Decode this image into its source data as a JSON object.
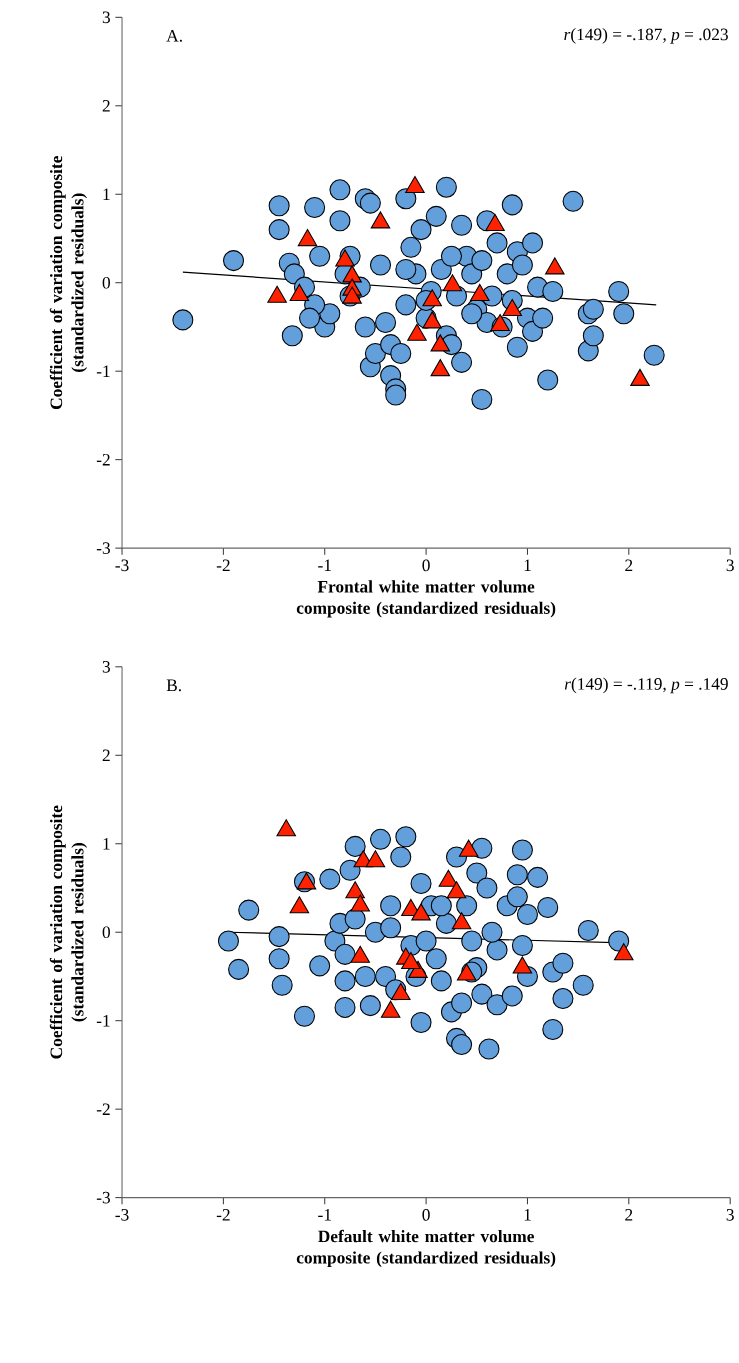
{
  "chart_data": [
    {
      "type": "scatter",
      "xlabel": "Frontal white matter volume composite (standardized residuals)",
      "ylabel": "Coefficient of variation composite (standardized residuals)",
      "annotations": [
        "A.",
        "*r*(149) = -.187, *p* = .023"
      ],
      "xlim": [
        -3,
        3
      ],
      "ylim": [
        -3,
        3
      ],
      "xticks": [
        -3,
        -2,
        -1,
        0,
        1,
        2,
        3
      ],
      "yticks": [
        -3,
        -2,
        -1,
        0,
        1,
        2,
        3
      ],
      "series": [
        {
          "color": "#629fdb",
          "marker": "circle",
          "x": [
            -2.4,
            -1.9,
            -1.45,
            -1.45,
            -1.35,
            -1.3,
            -1.32,
            -1.2,
            -1.1,
            -1.05,
            -1.0,
            -0.95,
            -1.1,
            -1.15,
            -0.85,
            -0.85,
            -0.75,
            -0.8,
            -0.6,
            -0.55,
            -0.6,
            -0.55,
            -0.5,
            -0.45,
            -0.4,
            -0.35,
            -0.35,
            -0.3,
            -0.3,
            -0.25,
            -0.2,
            -0.2,
            -0.15,
            -0.1,
            -0.05,
            0.0,
            0.05,
            0.1,
            0.15,
            0.2,
            0.2,
            0.25,
            0.3,
            0.35,
            0.35,
            0.4,
            0.45,
            0.5,
            0.55,
            0.55,
            0.6,
            0.6,
            0.65,
            0.7,
            0.75,
            0.8,
            0.85,
            0.85,
            0.9,
            0.9,
            0.95,
            1.0,
            1.05,
            1.05,
            1.1,
            1.15,
            1.2,
            1.25,
            1.45,
            1.6,
            1.6,
            1.65,
            1.65,
            1.9,
            1.95,
            2.25,
            -0.75,
            -0.65,
            -0.2,
            0.45,
            0.0,
            0.25
          ],
          "values": [
            -0.42,
            0.25,
            0.87,
            0.6,
            0.22,
            0.1,
            -0.6,
            -0.05,
            0.85,
            0.3,
            -0.5,
            -0.35,
            -0.25,
            -0.4,
            1.05,
            0.7,
            0.3,
            0.1,
            0.95,
            0.9,
            -0.5,
            -0.95,
            -0.8,
            0.2,
            -0.45,
            -0.7,
            -1.05,
            -1.2,
            -1.27,
            -0.8,
            0.95,
            -0.25,
            0.4,
            0.1,
            0.6,
            -0.4,
            -0.1,
            0.75,
            0.15,
            1.08,
            -0.6,
            -0.7,
            -0.15,
            0.65,
            -0.9,
            0.3,
            0.1,
            -0.3,
            -1.32,
            0.25,
            0.7,
            -0.45,
            -0.15,
            0.45,
            -0.5,
            0.1,
            0.88,
            -0.2,
            0.35,
            -0.73,
            0.2,
            -0.4,
            0.45,
            -0.55,
            -0.05,
            -0.4,
            -1.1,
            -0.1,
            0.92,
            -0.35,
            -0.77,
            -0.3,
            -0.6,
            -0.1,
            -0.35,
            -0.82,
            -0.15,
            -0.05,
            0.15,
            -0.35,
            -0.2,
            0.3
          ]
        },
        {
          "color": "#ff2200",
          "marker": "triangle",
          "x": [
            -1.47,
            -1.25,
            -1.17,
            -0.8,
            -0.73,
            -0.73,
            -0.73,
            -0.45,
            -0.11,
            -0.09,
            0.06,
            0.06,
            0.14,
            0.14,
            0.26,
            0.53,
            0.68,
            0.73,
            0.85,
            1.27,
            2.11
          ],
          "values": [
            -0.16,
            -0.14,
            0.48,
            0.25,
            0.07,
            -0.08,
            -0.17,
            0.68,
            1.08,
            -0.59,
            -0.2,
            -0.45,
            -0.71,
            -0.99,
            -0.03,
            -0.14,
            0.65,
            -0.48,
            -0.31,
            0.16,
            -1.1
          ]
        },
        {
          "type": "line",
          "color": "#000000",
          "marker": "none",
          "line_style": "solid",
          "x": [
            -2.4,
            2.27
          ],
          "values": [
            0.12,
            -0.25
          ]
        }
      ]
    },
    {
      "type": "scatter",
      "xlabel": "Default white matter volume composite (standardized residuals)",
      "ylabel": "Coefficient of variation composite (standardized residuals)",
      "annotations": [
        "B.",
        "*r*(149) = -.119, *p* = .149"
      ],
      "xlim": [
        -3,
        3
      ],
      "ylim": [
        -3,
        3
      ],
      "xticks": [
        -3,
        -2,
        -1,
        0,
        1,
        2,
        3
      ],
      "yticks": [
        -3,
        -2,
        -1,
        0,
        1,
        2,
        3
      ],
      "series": [
        {
          "color": "#629fdb",
          "marker": "circle",
          "x": [
            -1.95,
            -1.85,
            -1.75,
            -1.45,
            -1.45,
            -1.42,
            -1.2,
            -1.2,
            -1.05,
            -0.95,
            -0.9,
            -0.85,
            -0.8,
            -0.8,
            -0.8,
            -0.75,
            -0.7,
            -0.7,
            -0.6,
            -0.55,
            -0.5,
            -0.45,
            -0.4,
            -0.35,
            -0.35,
            -0.3,
            -0.25,
            -0.2,
            -0.15,
            -0.1,
            -0.05,
            0.0,
            0.05,
            0.1,
            0.15,
            0.2,
            0.25,
            0.3,
            0.3,
            0.35,
            0.35,
            0.4,
            0.45,
            0.5,
            0.5,
            0.55,
            0.55,
            0.6,
            0.62,
            0.7,
            0.7,
            0.8,
            0.85,
            0.9,
            0.9,
            0.95,
            0.95,
            1.0,
            1.0,
            1.1,
            1.2,
            1.25,
            1.25,
            1.35,
            1.35,
            1.55,
            1.6,
            1.9,
            0.65,
            -0.05,
            0.15,
            0.45
          ],
          "values": [
            -0.1,
            -0.42,
            0.25,
            -0.05,
            -0.3,
            -0.6,
            0.57,
            -0.95,
            -0.38,
            0.6,
            -0.1,
            0.1,
            -0.25,
            -0.55,
            -0.85,
            0.7,
            0.97,
            0.15,
            -0.5,
            -0.83,
            0.0,
            1.05,
            -0.5,
            0.3,
            0.05,
            -0.65,
            0.85,
            1.08,
            -0.15,
            -0.5,
            -1.02,
            -0.1,
            0.3,
            -0.3,
            -0.55,
            0.1,
            -0.9,
            0.85,
            -1.2,
            -1.27,
            -0.8,
            0.3,
            -0.1,
            0.67,
            -0.4,
            0.95,
            -0.7,
            0.5,
            -1.32,
            -0.2,
            -0.82,
            0.3,
            -0.72,
            0.65,
            0.4,
            0.93,
            -0.15,
            0.2,
            -0.5,
            0.62,
            0.28,
            -0.45,
            -1.1,
            -0.75,
            -0.35,
            -0.6,
            0.02,
            -0.1,
            0.0,
            0.55,
            0.3,
            -0.45
          ]
        },
        {
          "color": "#ff2200",
          "marker": "triangle",
          "x": [
            -1.38,
            -1.18,
            -1.25,
            -0.7,
            -0.65,
            -0.62,
            -0.5,
            -0.65,
            -0.35,
            -0.25,
            -0.2,
            -0.15,
            -0.05,
            -0.08,
            0.22,
            0.3,
            0.35,
            0.42,
            0.4,
            0.95,
            1.95,
            -0.15
          ],
          "values": [
            1.15,
            0.55,
            0.28,
            0.45,
            0.3,
            0.8,
            0.8,
            -0.28,
            -0.9,
            -0.7,
            -0.3,
            0.25,
            0.2,
            -0.45,
            0.58,
            0.45,
            0.1,
            0.92,
            -0.48,
            -0.4,
            -0.25,
            -0.35
          ]
        },
        {
          "type": "line",
          "color": "#000000",
          "marker": "none",
          "line_style": "solid",
          "x": [
            -1.95,
            1.95
          ],
          "values": [
            0.0,
            -0.12
          ]
        }
      ]
    }
  ]
}
